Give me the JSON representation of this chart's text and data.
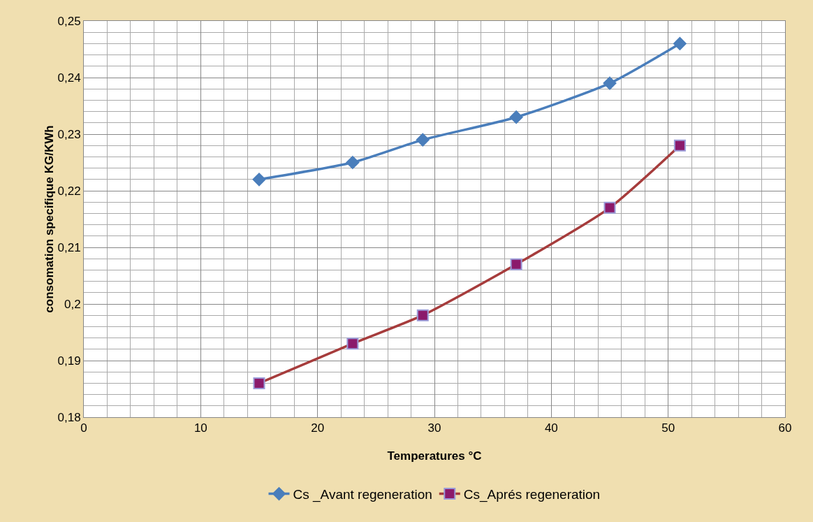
{
  "chart_data": {
    "type": "line",
    "xlabel": "Temperatures °C",
    "ylabel": "consomation specifique KG/KWh",
    "series": [
      {
        "name": "Cs _Avant regeneration",
        "color": "#4a7ebb",
        "marker": "diamond",
        "x": [
          15,
          23,
          29,
          37,
          45,
          51
        ],
        "values": [
          0.222,
          0.225,
          0.229,
          0.233,
          0.239,
          0.246
        ]
      },
      {
        "name": "Cs_Aprés regeneration",
        "color": "#a63c3c",
        "marker": "square",
        "x": [
          15,
          23,
          29,
          37,
          45,
          51
        ],
        "values": [
          0.186,
          0.193,
          0.198,
          0.207,
          0.217,
          0.228
        ]
      }
    ],
    "xlim": [
      0,
      60
    ],
    "xticks": [
      0,
      10,
      20,
      30,
      40,
      50,
      60
    ],
    "ylim": [
      0.18,
      0.25
    ],
    "yticks": [
      {
        "value": 0.18,
        "label": "0,18"
      },
      {
        "value": 0.19,
        "label": "0,19"
      },
      {
        "value": 0.2,
        "label": "0,2"
      },
      {
        "value": 0.21,
        "label": "0,21"
      },
      {
        "value": 0.22,
        "label": "0,22"
      },
      {
        "value": 0.23,
        "label": "0,23"
      },
      {
        "value": 0.24,
        "label": "0,24"
      },
      {
        "value": 0.25,
        "label": "0,25"
      }
    ],
    "grid": true,
    "legend": "bottom",
    "line_style": "solid"
  }
}
